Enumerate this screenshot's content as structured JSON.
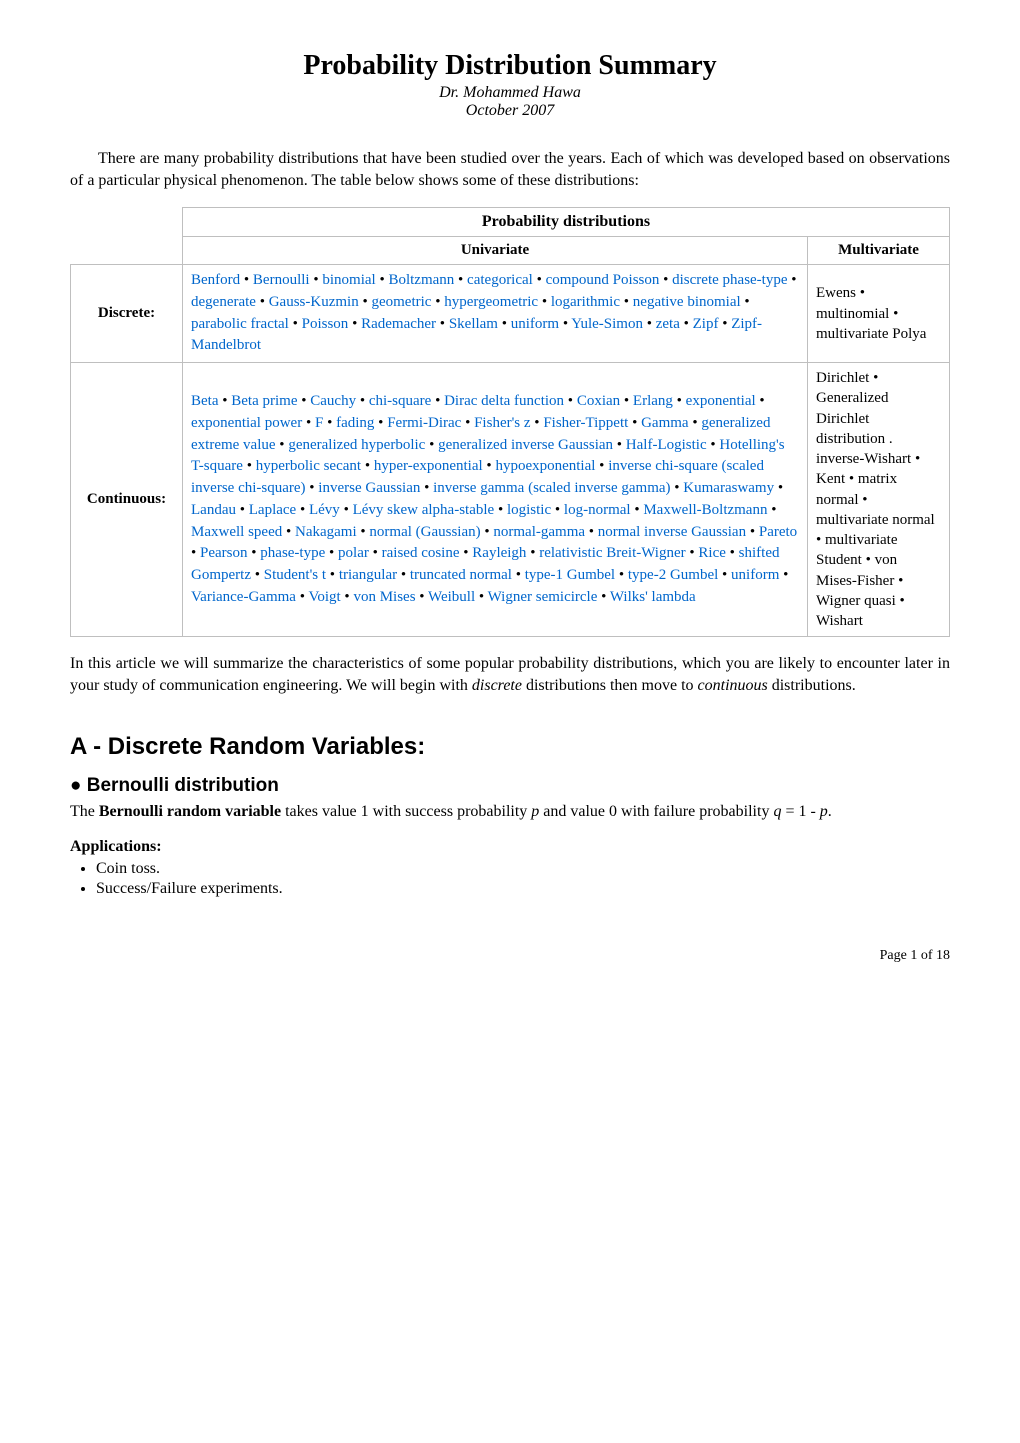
{
  "title": "Probability Distribution Summary",
  "author": "Dr. Mohammed Hawa",
  "date": "October 2007",
  "intro": "There are many probability distributions that have been studied over the years. Each of which was developed based on observations of a particular physical phenomenon. The table below shows some of these distributions:",
  "table": {
    "header_main": "Probability distributions",
    "header_uni": "Univariate",
    "header_multi": "Multivariate",
    "rowlabel_discrete": "Discrete:",
    "rowlabel_continuous": "Continuous:",
    "discrete_multi": "Ewens • multinomial • multivariate Polya",
    "continuous_multi": "Dirichlet • Generalized Dirichlet distribution . inverse-Wishart • Kent • matrix normal • multivariate normal • multivariate Student • von Mises-Fisher • Wigner quasi • Wishart",
    "link_color": "#0066cc",
    "border_color": "#bfbfbf",
    "discrete_items": [
      "Benford",
      "Bernoulli",
      "binomial",
      "Boltzmann",
      "categorical",
      "compound Poisson",
      "discrete phase-type",
      "degenerate",
      "Gauss-Kuzmin",
      "geometric",
      "hypergeometric",
      "logarithmic",
      "negative binomial",
      "parabolic fractal",
      "Poisson",
      "Rademacher",
      "Skellam",
      "uniform",
      "Yule-Simon",
      "zeta",
      "Zipf",
      "Zipf-Mandelbrot"
    ],
    "continuous_items": [
      "Beta",
      "Beta prime",
      "Cauchy",
      "chi-square",
      "Dirac delta function",
      "Coxian",
      "Erlang",
      "exponential",
      "exponential power",
      "F",
      "fading",
      "Fermi-Dirac",
      "Fisher's z",
      "Fisher-Tippett",
      "Gamma",
      "generalized extreme value",
      "generalized hyperbolic",
      "generalized inverse Gaussian",
      "Half-Logistic",
      "Hotelling's T-square",
      "hyperbolic secant",
      "hyper-exponential",
      "hypoexponential",
      "inverse chi-square (scaled inverse chi-square)",
      "inverse Gaussian",
      "inverse gamma (scaled inverse gamma)",
      "Kumaraswamy",
      "Landau",
      "Laplace",
      "Lévy",
      "Lévy skew alpha-stable",
      "logistic",
      "log-normal",
      "Maxwell-Boltzmann",
      "Maxwell speed",
      "Nakagami",
      "normal (Gaussian)",
      "normal-gamma",
      "normal inverse Gaussian",
      "Pareto",
      "Pearson",
      "phase-type",
      "polar",
      "raised cosine",
      "Rayleigh",
      "relativistic Breit-Wigner",
      "Rice",
      "shifted Gompertz",
      "Student's t",
      "triangular",
      "truncated normal",
      "type-1 Gumbel",
      "type-2 Gumbel",
      "uniform",
      "Variance-Gamma",
      "Voigt",
      "von Mises",
      "Weibull",
      "Wigner semicircle",
      "Wilks' lambda"
    ]
  },
  "posttable_pre": "In this article we will summarize the characteristics of some popular probability distributions, which you are likely to encounter later in your study of communication engineering. We will begin with ",
  "posttable_em1": "discrete",
  "posttable_mid": " distributions then move to ",
  "posttable_em2": "continuous",
  "posttable_post": " distributions.",
  "section_a_title": "A - Discrete Random Variables:",
  "bernoulli_bullet": "●",
  "bernoulli_title": " Bernoulli distribution",
  "bernoulli_text_pre": "The ",
  "bernoulli_text_bold": "Bernoulli random variable",
  "bernoulli_text_mid1": " takes value 1 with success probability ",
  "bernoulli_p": "p",
  "bernoulli_text_mid2": " and value 0 with failure probability ",
  "bernoulli_q": "q",
  "bernoulli_eq": " = 1 - ",
  "bernoulli_p2": "p",
  "bernoulli_period": ".",
  "apps_title": "Applications:",
  "app1": "Coin toss.",
  "app2": "Success/Failure experiments.",
  "footer": "Page 1 of 18"
}
